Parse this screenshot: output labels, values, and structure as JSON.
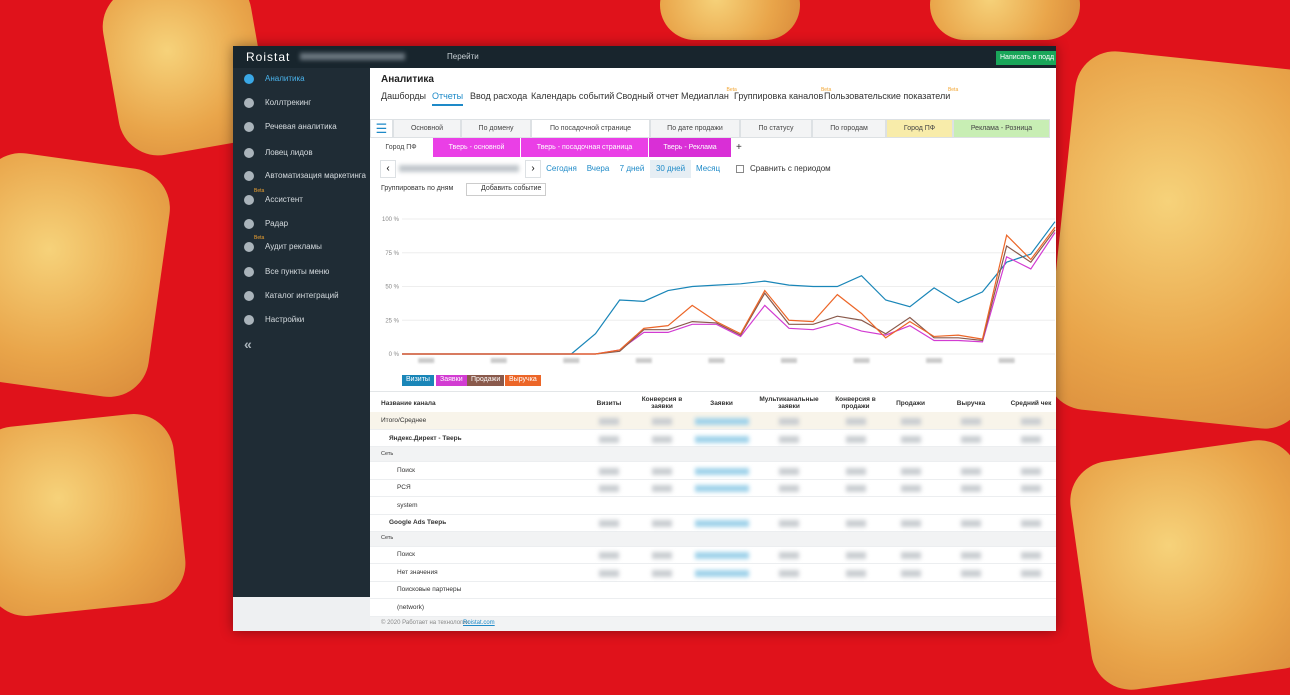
{
  "app": {
    "logo": "Roistat",
    "search_button": "Перейти",
    "support_button": "Написать в подд"
  },
  "sidebar": {
    "items": [
      {
        "label": "Аналитика"
      },
      {
        "label": "Коллтрекинг"
      },
      {
        "label": "Речевая аналитика"
      },
      {
        "label": "Ловец лидов"
      },
      {
        "label": "Автоматизация маркетинга"
      },
      {
        "label": "Ассистент",
        "badge": "Beta"
      },
      {
        "label": "Радар"
      },
      {
        "label": "Аудит рекламы",
        "badge": "Beta"
      },
      {
        "label": "Все пункты меню"
      },
      {
        "label": "Каталог интеграций"
      },
      {
        "label": "Настройки"
      }
    ]
  },
  "header": {
    "title": "Аналитика",
    "tabs": [
      {
        "label": "Дашборды"
      },
      {
        "label": "Отчеты"
      },
      {
        "label": "Ввод расхода"
      },
      {
        "label": "Календарь событий"
      },
      {
        "label": "Сводный отчет"
      },
      {
        "label": "Медиаплан",
        "badge": "Beta"
      },
      {
        "label": "Группировка каналов",
        "badge": "Beta"
      },
      {
        "label": "Пользовательские показатели",
        "badge": "Beta"
      }
    ]
  },
  "report_tabs": [
    "Основной",
    "По домену",
    "По посадочной странице",
    "По дате продажи",
    "По статусу",
    "По городам",
    "Город ПФ",
    "Реклама - Розница"
  ],
  "report_tabs_2": [
    "Город ПФ",
    "Тверь - основной",
    "Тверь - посадочная страница",
    "Тверь - Реклама"
  ],
  "period": {
    "buttons": [
      "Сегодня",
      "Вчера",
      "7 дней",
      "30 дней",
      "Месяц"
    ],
    "compare": "Сравнить с периодом"
  },
  "toolbar": {
    "group_by": "Группировать по дням",
    "add_event": "Добавить событие"
  },
  "chart_data": {
    "type": "line",
    "categories": [
      null,
      null,
      null,
      null,
      null,
      null,
      null,
      null,
      null,
      null,
      null,
      null,
      null,
      null,
      null,
      null,
      null,
      null,
      null,
      null,
      null,
      null,
      null,
      null,
      null,
      null,
      null,
      null
    ],
    "ylim": [
      0,
      100
    ],
    "yticks": [
      {
        "value": 0,
        "label": "0 %"
      },
      {
        "value": 25,
        "label": "25 %"
      },
      {
        "value": 50,
        "label": "50 %"
      },
      {
        "value": 75,
        "label": "75 %"
      },
      {
        "value": 100,
        "label": "100 %"
      }
    ],
    "grid": true,
    "series": [
      {
        "name": "Визиты",
        "color": "#1a86b8",
        "values": [
          0,
          0,
          0,
          0,
          0,
          0,
          0,
          0,
          15,
          40,
          39,
          47,
          50,
          51,
          52,
          54,
          51,
          50,
          50,
          58,
          40,
          35,
          49,
          38,
          46,
          68,
          74,
          98
        ]
      },
      {
        "name": "Заявки",
        "color": "#d23cd2",
        "values": [
          0,
          0,
          0,
          0,
          0,
          0,
          0,
          0,
          0,
          3,
          16,
          16,
          22,
          22,
          13,
          36,
          19,
          18,
          23,
          17,
          14,
          21,
          10,
          10,
          9,
          72,
          63,
          90
        ]
      },
      {
        "name": "Продажи",
        "color": "#8a5a4c",
        "values": [
          0,
          0,
          0,
          0,
          0,
          0,
          0,
          0,
          0,
          2,
          18,
          18,
          24,
          23,
          14,
          45,
          22,
          22,
          28,
          25,
          15,
          27,
          12,
          12,
          10,
          80,
          68,
          92
        ]
      },
      {
        "name": "Выручка",
        "color": "#ec6628",
        "values": [
          0,
          0,
          0,
          0,
          0,
          0,
          0,
          0,
          0,
          3,
          19,
          21,
          36,
          24,
          15,
          47,
          25,
          24,
          44,
          30,
          12,
          24,
          13,
          14,
          11,
          88,
          70,
          94
        ]
      }
    ]
  },
  "table": {
    "columns": [
      "Название канала",
      "Визиты",
      "Конверсия в заявки",
      "Заявки",
      "Мультиканальные заявки",
      "Конверсия в продажи",
      "Продажи",
      "Выручка",
      "Средний чек"
    ],
    "total": "Итого/Среднее",
    "groups": [
      {
        "name": "Яндекс.Директ - Тверь",
        "section": "Сеть",
        "rows": [
          "Поиск",
          "РСЯ",
          "system"
        ]
      },
      {
        "name": "Google Ads Тверь",
        "section": "Сеть",
        "rows": [
          "Поиск",
          "Нет значения",
          "Поисковые партнеры",
          "(network)"
        ]
      }
    ]
  },
  "footer": {
    "copyright": "© 2020 Работает на технологии",
    "link": "Roistat.com"
  }
}
